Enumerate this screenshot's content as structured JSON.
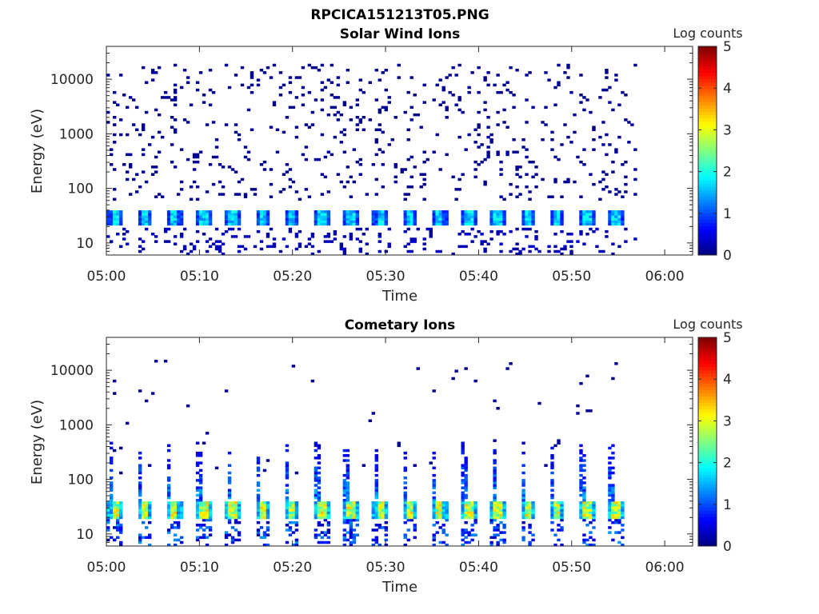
{
  "figure_title": "RPCICA151213T05.PNG",
  "chart_data": [
    {
      "type": "heatmap",
      "title": "Solar Wind Ions",
      "xlabel": "Time",
      "ylabel": "Energy (eV)",
      "x_ticks": [
        "05:00",
        "05:10",
        "05:20",
        "05:30",
        "05:40",
        "05:50",
        "06:00"
      ],
      "x_range": [
        "05:00",
        "06:03"
      ],
      "data_time_range": [
        "05:00",
        "05:57"
      ],
      "y_scale": "log",
      "y_ticks": [
        "10",
        "100",
        "1000",
        "10000"
      ],
      "y_range": [
        6,
        40000
      ],
      "colorbar": {
        "label": "Log counts",
        "ticks": [
          "0",
          "1",
          "2",
          "3",
          "4",
          "5"
        ],
        "range": [
          0,
          5
        ],
        "colormap": "jet"
      },
      "sweep_count": 18,
      "features": {
        "core_band_eV": [
          22,
          40
        ],
        "core_peak_log_counts": 1.8,
        "low_energy_band_eV": [
          6,
          20
        ],
        "low_energy_log_counts": 0.3,
        "sparse_background_eV": [
          60,
          20000
        ],
        "sparse_background_log_counts": 0.1
      }
    },
    {
      "type": "heatmap",
      "title": "Cometary Ions",
      "xlabel": "Time",
      "ylabel": "Energy (eV)",
      "x_ticks": [
        "05:00",
        "05:10",
        "05:20",
        "05:30",
        "05:40",
        "05:50",
        "06:00"
      ],
      "x_range": [
        "05:00",
        "06:03"
      ],
      "data_time_range": [
        "05:00",
        "05:57"
      ],
      "y_scale": "log",
      "y_ticks": [
        "10",
        "100",
        "1000",
        "10000"
      ],
      "y_range": [
        6,
        40000
      ],
      "colorbar": {
        "label": "Log counts",
        "ticks": [
          "0",
          "1",
          "2",
          "3",
          "4",
          "5"
        ],
        "range": [
          0,
          5
        ],
        "colormap": "jet"
      },
      "sweep_count": 18,
      "features": {
        "core_band_eV": [
          20,
          40
        ],
        "core_peak_log_counts": 3.0,
        "spike_max_eV": 500,
        "spike_log_counts": 1.5,
        "sparse_background_eV": [
          100,
          15000
        ],
        "sparse_background_log_counts": 0.1
      }
    }
  ]
}
